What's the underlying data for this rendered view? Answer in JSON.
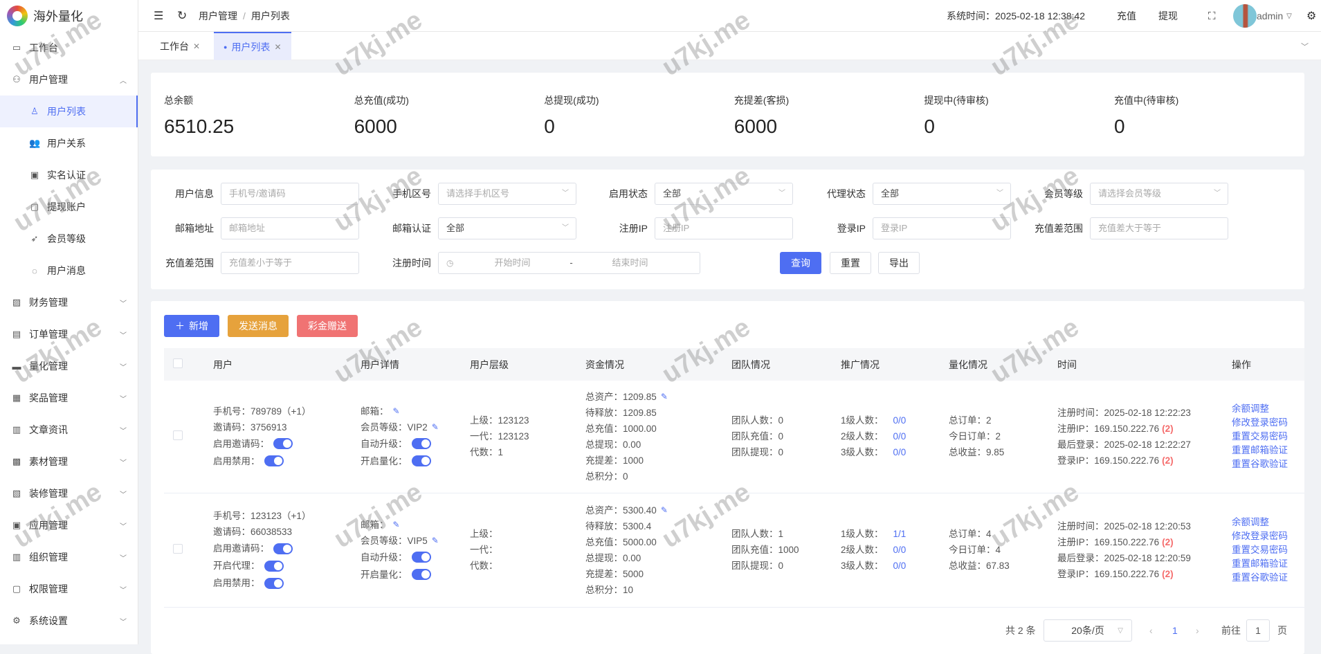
{
  "app": {
    "title": "海外量化"
  },
  "sidebar": {
    "items": [
      {
        "label": "工作台",
        "icon": "monitor-icon",
        "glyph": "▭"
      },
      {
        "label": "用户管理",
        "icon": "user-icon",
        "glyph": "⚇",
        "expandable": true,
        "expanded": true,
        "children": [
          {
            "label": "用户列表",
            "icon": "user-list-icon",
            "glyph": "♙",
            "active": true
          },
          {
            "label": "用户关系",
            "icon": "users-icon",
            "glyph": "👥"
          },
          {
            "label": "实名认证",
            "icon": "id-card-icon",
            "glyph": "▣"
          },
          {
            "label": "提现账户",
            "icon": "wallet-icon",
            "glyph": "▢"
          },
          {
            "label": "会员等级",
            "icon": "rocket-icon",
            "glyph": "➶"
          },
          {
            "label": "用户消息",
            "icon": "chat-icon",
            "glyph": "◌"
          }
        ]
      },
      {
        "label": "财务管理",
        "icon": "chart-icon",
        "glyph": "▨",
        "expandable": true
      },
      {
        "label": "订单管理",
        "icon": "order-icon",
        "glyph": "▤",
        "expandable": true
      },
      {
        "label": "量化管理",
        "icon": "quant-icon",
        "glyph": "▬",
        "expandable": true
      },
      {
        "label": "奖品管理",
        "icon": "gift-icon",
        "glyph": "▦",
        "expandable": true
      },
      {
        "label": "文章资讯",
        "icon": "article-icon",
        "glyph": "▥",
        "expandable": true
      },
      {
        "label": "素材管理",
        "icon": "image-icon",
        "glyph": "▩",
        "expandable": true
      },
      {
        "label": "装修管理",
        "icon": "decorate-icon",
        "glyph": "▧",
        "expandable": true
      },
      {
        "label": "应用管理",
        "icon": "app-icon",
        "glyph": "▣",
        "expandable": true
      },
      {
        "label": "组织管理",
        "icon": "org-icon",
        "glyph": "▥",
        "expandable": true
      },
      {
        "label": "权限管理",
        "icon": "lock-icon",
        "glyph": "▢",
        "expandable": true
      },
      {
        "label": "系统设置",
        "icon": "gear-icon",
        "glyph": "⚙",
        "expandable": true
      }
    ]
  },
  "header": {
    "breadcrumb": [
      "用户管理",
      "用户列表"
    ],
    "separator": "/",
    "system_time_label": "系统时间：",
    "system_time": "2025-02-18 12:38:42",
    "recharge": "充值",
    "withdraw": "提现",
    "user": "admin"
  },
  "tabs": [
    {
      "label": "工作台"
    },
    {
      "label": "用户列表",
      "active": true
    }
  ],
  "stats": [
    {
      "label": "总余额",
      "value": "6510.25"
    },
    {
      "label": "总充值(成功)",
      "value": "6000"
    },
    {
      "label": "总提现(成功)",
      "value": "0"
    },
    {
      "label": "充提差(客损)",
      "value": "6000"
    },
    {
      "label": "提现中(待审核)",
      "value": "0"
    },
    {
      "label": "充值中(待审核)",
      "value": "0"
    }
  ],
  "filters": {
    "user_info": {
      "label": "用户信息",
      "placeholder": "手机号/邀请码"
    },
    "area_code": {
      "label": "手机区号",
      "placeholder": "请选择手机区号"
    },
    "enable_status": {
      "label": "启用状态",
      "value": "全部"
    },
    "agent_status": {
      "label": "代理状态",
      "value": "全部"
    },
    "member_level": {
      "label": "会员等级",
      "placeholder": "请选择会员等级"
    },
    "email": {
      "label": "邮箱地址",
      "placeholder": "邮箱地址"
    },
    "email_verify": {
      "label": "邮箱认证",
      "value": "全部"
    },
    "register_ip": {
      "label": "注册IP",
      "placeholder": "注册IP"
    },
    "login_ip": {
      "label": "登录IP",
      "placeholder": "登录IP"
    },
    "diff_min": {
      "label": "充值差范围",
      "placeholder": "充值差大于等于"
    },
    "diff_max": {
      "label": "充值差范围",
      "placeholder": "充值差小于等于"
    },
    "register_time": {
      "label": "注册时间",
      "start_placeholder": "开始时间",
      "separator": "-",
      "end_placeholder": "结束时间"
    },
    "query": "查询",
    "reset": "重置",
    "export": "导出"
  },
  "actions": {
    "add": "新增",
    "send_message": "发送消息",
    "bonus": "彩金赠送"
  },
  "table": {
    "columns": [
      "用户",
      "用户详情",
      "用户层级",
      "资金情况",
      "团队情况",
      "推广情况",
      "量化情况",
      "时间",
      "操作"
    ],
    "rows": [
      {
        "cells": [
          [
            {
              "label": "手机号：",
              "value": "789789（+1）"
            },
            {
              "label": "邀请码：",
              "value": "3756913"
            },
            {
              "label": "启用邀请码：",
              "switch": true
            },
            {
              "label": "启用禁用：",
              "switch": true
            }
          ],
          [
            {
              "label": "邮箱：",
              "value": "",
              "edit": true
            },
            {
              "label": "会员等级：",
              "value": "VIP2",
              "edit": true
            },
            {
              "label": "自动升级：",
              "switch": true
            },
            {
              "label": "开启量化：",
              "switch": true
            }
          ],
          [
            {
              "label": "上级：",
              "value": "123123"
            },
            {
              "label": "一代：",
              "value": "123123"
            },
            {
              "label": "代数：",
              "value": "1"
            }
          ],
          [
            {
              "label": "总资产：",
              "value": "1209.85",
              "edit": true
            },
            {
              "label": "待释放：",
              "value": "1209.85"
            },
            {
              "label": "总充值：",
              "value": "1000.00"
            },
            {
              "label": "总提现：",
              "value": "0.00"
            },
            {
              "label": "充提差：",
              "value": " 1000"
            },
            {
              "label": "总积分：",
              "value": "0"
            }
          ],
          [
            {
              "label": "团队人数：",
              "value": "0"
            },
            {
              "label": "团队充值：",
              "value": "0"
            },
            {
              "label": "团队提现：",
              "value": "0"
            }
          ],
          [
            {
              "label": "1级人数：",
              "link": "0/0"
            },
            {
              "label": "2级人数：",
              "link": "0/0"
            },
            {
              "label": "3级人数：",
              "link": "0/0"
            }
          ],
          [
            {
              "label": "总订单：",
              "value": "2"
            },
            {
              "label": "今日订单：",
              "value": "2"
            },
            {
              "label": "总收益：",
              "value": "9.85"
            }
          ],
          [
            {
              "label": "注册时间：",
              "value": "2025-02-18 12:22:23"
            },
            {
              "label": "注册IP：",
              "value": "169.150.222.76",
              "red": "(2)"
            },
            {
              "label": "最后登录：",
              "value": "2025-02-18 12:22:27"
            },
            {
              "label": "登录IP：",
              "value": "169.150.222.76",
              "red": "(2)"
            }
          ]
        ],
        "ops": [
          "余额调整",
          "修改登录密码",
          "重置交易密码",
          "重置邮箱验证",
          "重置谷歌验证"
        ]
      },
      {
        "cells": [
          [
            {
              "label": "手机号：",
              "value": "123123（+1）"
            },
            {
              "label": "邀请码：",
              "value": "66038533"
            },
            {
              "label": "启用邀请码：",
              "switch": true
            },
            {
              "label": "开启代理：",
              "switch": true
            },
            {
              "label": "启用禁用：",
              "switch": true
            }
          ],
          [
            {
              "label": "邮箱：",
              "value": "",
              "edit": true
            },
            {
              "label": "会员等级：",
              "value": "VIP5",
              "edit": true
            },
            {
              "label": "自动升级：",
              "switch": true
            },
            {
              "label": "开启量化：",
              "switch": true
            }
          ],
          [
            {
              "label": "上级：",
              "value": ""
            },
            {
              "label": "一代：",
              "value": ""
            },
            {
              "label": "代数：",
              "value": ""
            }
          ],
          [
            {
              "label": "总资产：",
              "value": "5300.40",
              "edit": true
            },
            {
              "label": "待释放：",
              "value": "5300.4"
            },
            {
              "label": "总充值：",
              "value": "5000.00"
            },
            {
              "label": "总提现：",
              "value": "0.00"
            },
            {
              "label": "充提差：",
              "value": " 5000"
            },
            {
              "label": "总积分：",
              "value": "10"
            }
          ],
          [
            {
              "label": "团队人数：",
              "value": "1"
            },
            {
              "label": "团队充值：",
              "value": "1000"
            },
            {
              "label": "团队提现：",
              "value": "0"
            }
          ],
          [
            {
              "label": "1级人数：",
              "link": "1/1"
            },
            {
              "label": "2级人数：",
              "link": "0/0"
            },
            {
              "label": "3级人数：",
              "link": "0/0"
            }
          ],
          [
            {
              "label": "总订单：",
              "value": "4"
            },
            {
              "label": "今日订单：",
              "value": "4"
            },
            {
              "label": "总收益：",
              "value": "67.83"
            }
          ],
          [
            {
              "label": "注册时间：",
              "value": "2025-02-18 12:20:53"
            },
            {
              "label": "注册IP：",
              "value": "169.150.222.76",
              "red": "(2)"
            },
            {
              "label": "最后登录：",
              "value": "2025-02-18 12:20:59"
            },
            {
              "label": "登录IP：",
              "value": "169.150.222.76",
              "red": "(2)"
            }
          ]
        ],
        "ops": [
          "余额调整",
          "修改登录密码",
          "重置交易密码",
          "重置邮箱验证",
          "重置谷歌验证"
        ]
      }
    ]
  },
  "pagination": {
    "total": "共 2 条",
    "page_size": "20条/页",
    "current": "1",
    "goto_label": "前往",
    "goto_value": "1",
    "page_suffix": "页"
  },
  "watermark": "u7kj.me",
  "colors": {
    "primary": "#4e6ef2",
    "warning": "#e6a23c",
    "danger": "#f07373"
  }
}
